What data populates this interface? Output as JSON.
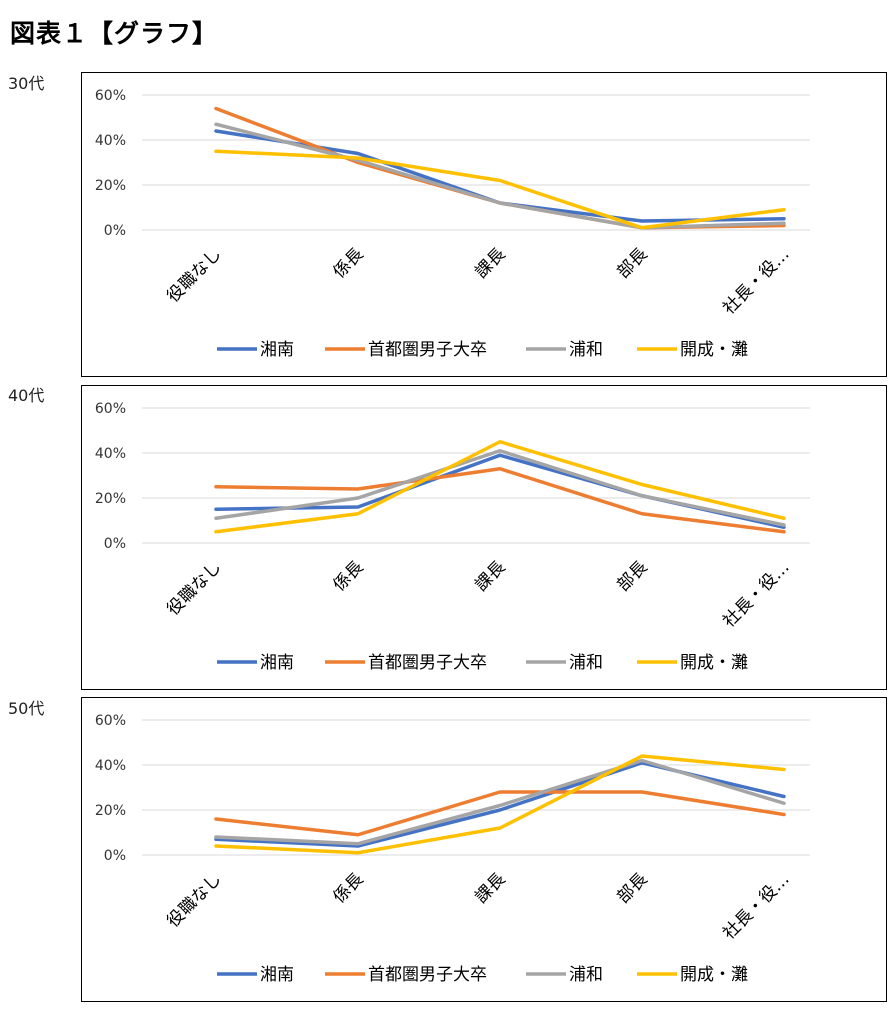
{
  "page": {
    "title": "図表１【グラフ】"
  },
  "series_colors": [
    "#4472C4",
    "#ED7D31",
    "#A5A5A5",
    "#FFC000"
  ],
  "chart_data": [
    {
      "type": "line",
      "label": "30代",
      "categories": [
        "役職なし",
        "係長",
        "課長",
        "部長",
        "社長・役…"
      ],
      "yticks": [
        "0%",
        "20%",
        "40%",
        "60%"
      ],
      "ylim": [
        0,
        60
      ],
      "grid": true,
      "legend": "bottom",
      "series": [
        {
          "name": "湘南",
          "values": [
            44,
            34,
            12,
            4,
            5
          ]
        },
        {
          "name": "首都圏男子大卒",
          "values": [
            54,
            30,
            12,
            1,
            2
          ]
        },
        {
          "name": "浦和",
          "values": [
            47,
            31,
            12,
            1,
            3
          ]
        },
        {
          "name": "開成・灘",
          "values": [
            35,
            32,
            22,
            1,
            9
          ]
        }
      ]
    },
    {
      "type": "line",
      "label": "40代",
      "categories": [
        "役職なし",
        "係長",
        "課長",
        "部長",
        "社長・役…"
      ],
      "yticks": [
        "0%",
        "20%",
        "40%",
        "60%"
      ],
      "ylim": [
        0,
        60
      ],
      "grid": true,
      "legend": "bottom",
      "series": [
        {
          "name": "湘南",
          "values": [
            15,
            16,
            39,
            21,
            7
          ]
        },
        {
          "name": "首都圏男子大卒",
          "values": [
            25,
            24,
            33,
            13,
            5
          ]
        },
        {
          "name": "浦和",
          "values": [
            11,
            20,
            41,
            21,
            8
          ]
        },
        {
          "name": "開成・灘",
          "values": [
            5,
            13,
            45,
            26,
            11
          ]
        }
      ]
    },
    {
      "type": "line",
      "label": "50代",
      "categories": [
        "役職なし",
        "係長",
        "課長",
        "部長",
        "社長・役…"
      ],
      "yticks": [
        "0%",
        "20%",
        "40%",
        "60%"
      ],
      "ylim": [
        0,
        60
      ],
      "grid": true,
      "legend": "bottom",
      "series": [
        {
          "name": "湘南",
          "values": [
            7,
            4,
            20,
            41,
            26
          ]
        },
        {
          "name": "首都圏男子大卒",
          "values": [
            16,
            9,
            28,
            28,
            18
          ]
        },
        {
          "name": "浦和",
          "values": [
            8,
            5,
            22,
            42,
            23
          ]
        },
        {
          "name": "開成・灘",
          "values": [
            4,
            1,
            12,
            44,
            38
          ]
        }
      ]
    }
  ]
}
